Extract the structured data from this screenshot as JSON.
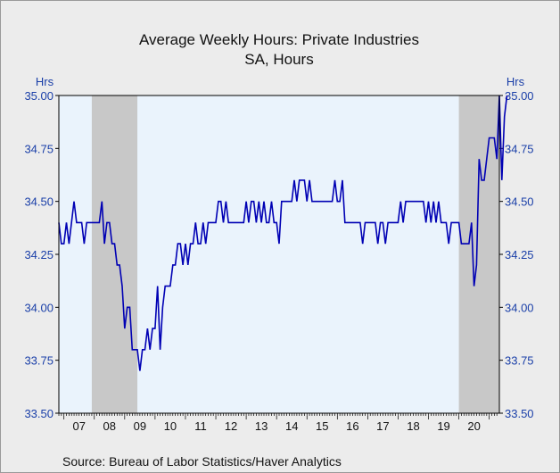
{
  "chart_data": {
    "type": "line",
    "title": "Average Weekly Hours: Private Industries",
    "subtitle": "SA, Hours",
    "y_unit_left": "Hrs",
    "y_unit_right": "Hrs",
    "source": "Source:  Bureau of Labor Statistics/Haver Analytics",
    "ylim": [
      33.5,
      35.0
    ],
    "xlim": [
      2006.833,
      2021.333
    ],
    "y_ticks": [
      "33.50",
      "33.75",
      "34.00",
      "34.25",
      "34.50",
      "34.75",
      "35.00"
    ],
    "x_tick_labels": [
      "07",
      "08",
      "09",
      "10",
      "11",
      "12",
      "13",
      "14",
      "15",
      "16",
      "17",
      "18",
      "19",
      "20"
    ],
    "grid": false,
    "recessions": [
      [
        2007.917,
        2009.417
      ],
      [
        2020.0,
        2021.333
      ]
    ],
    "colors": {
      "line": "#0000b4",
      "axis_text": "#1a3fa8",
      "plot_bg": "#eaf3fc",
      "recession": "#c8c8c8"
    },
    "series": [
      {
        "x_start": 2006.833,
        "step_months": 1,
        "values": [
          34.4,
          34.3,
          34.3,
          34.4,
          34.3,
          34.4,
          34.5,
          34.4,
          34.4,
          34.4,
          34.3,
          34.4,
          34.4,
          34.4,
          34.4,
          34.4,
          34.4,
          34.5,
          34.3,
          34.4,
          34.4,
          34.3,
          34.3,
          34.2,
          34.2,
          34.1,
          33.9,
          34.0,
          34.0,
          33.8,
          33.8,
          33.8,
          33.7,
          33.8,
          33.8,
          33.9,
          33.8,
          33.9,
          33.9,
          34.1,
          33.8,
          34.0,
          34.1,
          34.1,
          34.1,
          34.2,
          34.2,
          34.3,
          34.3,
          34.2,
          34.3,
          34.2,
          34.3,
          34.3,
          34.4,
          34.3,
          34.3,
          34.4,
          34.3,
          34.4,
          34.4,
          34.4,
          34.4,
          34.5,
          34.5,
          34.4,
          34.5,
          34.4,
          34.4,
          34.4,
          34.4,
          34.4,
          34.4,
          34.4,
          34.5,
          34.4,
          34.5,
          34.5,
          34.4,
          34.5,
          34.4,
          34.5,
          34.4,
          34.4,
          34.5,
          34.4,
          34.4,
          34.3,
          34.5,
          34.5,
          34.5,
          34.5,
          34.5,
          34.6,
          34.5,
          34.6,
          34.6,
          34.6,
          34.5,
          34.6,
          34.5,
          34.5,
          34.5,
          34.5,
          34.5,
          34.5,
          34.5,
          34.5,
          34.5,
          34.6,
          34.5,
          34.5,
          34.6,
          34.4,
          34.4,
          34.4,
          34.4,
          34.4,
          34.4,
          34.4,
          34.3,
          34.4,
          34.4,
          34.4,
          34.4,
          34.4,
          34.3,
          34.4,
          34.4,
          34.3,
          34.4,
          34.4,
          34.4,
          34.4,
          34.4,
          34.5,
          34.4,
          34.5,
          34.5,
          34.5,
          34.5,
          34.5,
          34.5,
          34.5,
          34.5,
          34.4,
          34.5,
          34.4,
          34.5,
          34.4,
          34.5,
          34.4,
          34.4,
          34.4,
          34.3,
          34.4,
          34.4,
          34.4,
          34.4,
          34.3,
          34.3,
          34.3,
          34.3,
          34.4,
          34.1,
          34.2,
          34.7,
          34.6,
          34.6,
          34.7,
          34.8,
          34.8,
          34.8,
          34.7,
          35.0,
          34.6,
          34.9,
          35.0
        ]
      }
    ]
  }
}
